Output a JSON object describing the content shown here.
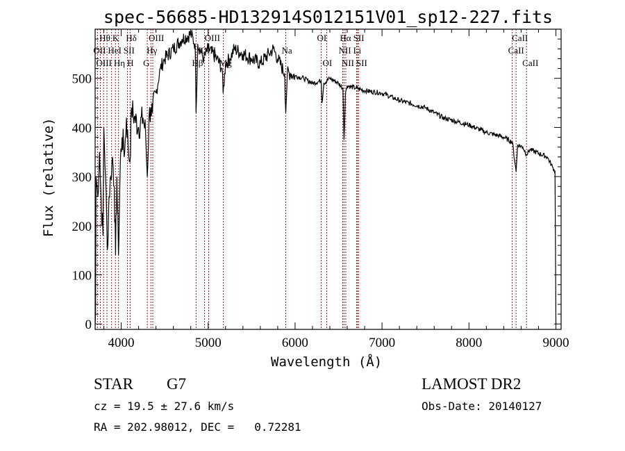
{
  "chart_data": {
    "type": "line",
    "title": "spec-56685-HD132914S012151V01_sp12-227.fits",
    "xlabel": "Wavelength (Å)",
    "ylabel": "Flux (relative)",
    "xlim": [
      3700,
      9060
    ],
    "ylim": [
      -11,
      600
    ],
    "xticks": [
      4000,
      5000,
      6000,
      7000,
      8000,
      9000
    ],
    "xtick_labels": [
      "4000",
      "5000",
      "6000",
      "7000",
      "8000",
      "9000"
    ],
    "yticks": [
      0,
      100,
      200,
      300,
      400,
      500
    ],
    "ytick_labels": [
      "0",
      "100",
      "200",
      "300",
      "400",
      "500"
    ],
    "grid": false,
    "series": [
      {
        "name": "spectrum",
        "x": [
          3700,
          3705,
          3710,
          3730,
          3750,
          3770,
          3790,
          3800,
          3820,
          3840,
          3860,
          3880,
          3900,
          3920,
          3935,
          3950,
          3968,
          3990,
          4010,
          4040,
          4060,
          4080,
          4100,
          4120,
          4150,
          4200,
          4250,
          4280,
          4300,
          4320,
          4340,
          4360,
          4400,
          4450,
          4500,
          4600,
          4700,
          4800,
          4850,
          4861,
          4880,
          4950,
          5000,
          5100,
          5160,
          5172,
          5200,
          5250,
          5300,
          5400,
          5500,
          5600,
          5700,
          5750,
          5800,
          5880,
          5893,
          5910,
          5950,
          6000,
          6100,
          6200,
          6300,
          6310,
          6330,
          6400,
          6500,
          6550,
          6563,
          6580,
          6600,
          6700,
          6800,
          7000,
          7200,
          7500,
          7600,
          7700,
          8000,
          8200,
          8400,
          8500,
          8542,
          8560,
          8620,
          8662,
          8700,
          8900,
          8960,
          8990,
          9000
        ],
        "y": [
          0,
          20,
          300,
          260,
          350,
          250,
          180,
          400,
          300,
          150,
          260,
          300,
          340,
          280,
          140,
          300,
          140,
          330,
          380,
          350,
          420,
          360,
          330,
          440,
          420,
          400,
          420,
          390,
          300,
          420,
          440,
          430,
          470,
          520,
          540,
          560,
          580,
          590,
          570,
          430,
          570,
          540,
          560,
          540,
          520,
          470,
          530,
          540,
          560,
          550,
          540,
          530,
          550,
          560,
          540,
          510,
          430,
          510,
          510,
          505,
          500,
          490,
          495,
          450,
          490,
          500,
          490,
          480,
          375,
          470,
          485,
          480,
          475,
          470,
          455,
          440,
          430,
          420,
          405,
          390,
          380,
          370,
          310,
          365,
          360,
          345,
          355,
          340,
          320,
          310,
          0
        ]
      }
    ],
    "lines": [
      {
        "label": "OII",
        "wave": 3727,
        "row": 1
      },
      {
        "label": "OIII",
        "wave": 3760,
        "row": 2
      },
      {
        "label": "Hθ",
        "wave": 3798,
        "row": 0
      },
      {
        "label": "Hη",
        "wave": 3836,
        "row": 2
      },
      {
        "label": "HeI",
        "wave": 3889,
        "row": 1
      },
      {
        "label": "K",
        "wave": 3934,
        "row": 0
      },
      {
        "label": "H",
        "wave": 3969,
        "row": 2
      },
      {
        "label": "SII",
        "wave": 4072,
        "row": 1
      },
      {
        "label": "Hδ",
        "wave": 4102,
        "row": 0
      },
      {
        "label": "G",
        "wave": 4300,
        "row": 2
      },
      {
        "label": "Hγ",
        "wave": 4341,
        "row": 1
      },
      {
        "label": "OIII",
        "wave": 4363,
        "row": 0
      },
      {
        "label": "Hβ",
        "wave": 4861,
        "row": 2
      },
      {
        "label": "OIII",
        "wave": 4959,
        "row": 1
      },
      {
        "label": "OIII",
        "wave": 5007,
        "row": 0
      },
      {
        "label": "Mg",
        "wave": 5175,
        "row": 2
      },
      {
        "label": "Na",
        "wave": 5893,
        "row": 1
      },
      {
        "label": "OI",
        "wave": 6300,
        "row": 0
      },
      {
        "label": "OI",
        "wave": 6364,
        "row": 2
      },
      {
        "label": "NII",
        "wave": 6548,
        "row": 1
      },
      {
        "label": "Hα",
        "wave": 6563,
        "row": 0
      },
      {
        "label": "NII",
        "wave": 6583,
        "row": 2
      },
      {
        "label": "Li",
        "wave": 6708,
        "row": 1
      },
      {
        "label": "SII",
        "wave": 6717,
        "row": 0
      },
      {
        "label": "SII",
        "wave": 6731,
        "row": 2
      },
      {
        "label": "CaII",
        "wave": 8498,
        "row": 1
      },
      {
        "label": "CaII",
        "wave": 8542,
        "row": 0
      },
      {
        "label": "CaII",
        "wave": 8662,
        "row": 2
      }
    ],
    "colors": {
      "spectrum": "#000000",
      "line_marker": "#8b1a1a"
    }
  },
  "info": {
    "class": "STAR",
    "subclass": "G7",
    "cz": "cz = 19.5 ± 27.6 km/s",
    "radec": "RA = 202.98012, DEC =   0.72281",
    "survey": "LAMOST DR2",
    "obsdate": "Obs-Date: 20140127"
  }
}
